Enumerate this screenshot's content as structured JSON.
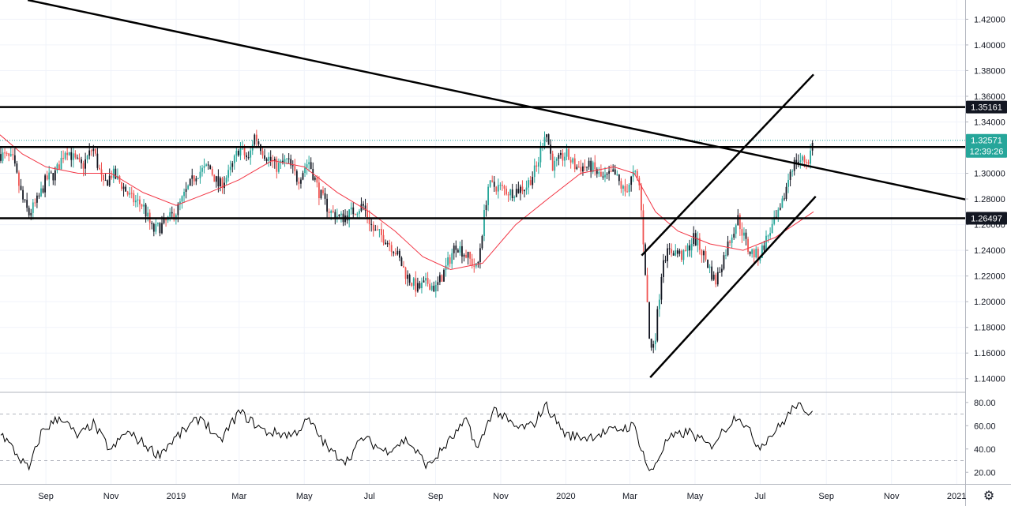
{
  "colors": {
    "up": "#26a69a",
    "down": "#ef5350",
    "candle_dark": "#131722",
    "ma": "#f23645",
    "grid": "#f0f3fa",
    "hline": "#000000",
    "badge_bg": "#131722",
    "last_price_bg": "#26a69a",
    "indicator": "#000000"
  },
  "chart_data": [
    {
      "type": "candlestick",
      "title": "",
      "xlabel": "",
      "ylabel": "",
      "ylim": [
        1.13,
        1.435
      ],
      "y_ticks": [
        "1.42000",
        "1.40000",
        "1.38000",
        "1.36000",
        "1.34000",
        "1.32000",
        "1.30000",
        "1.28000",
        "1.26000",
        "1.24000",
        "1.22000",
        "1.20000",
        "1.18000",
        "1.16000",
        "1.14000"
      ],
      "x_ticks": [
        "Sep",
        "Nov",
        "2019",
        "Mar",
        "May",
        "Jul",
        "Sep",
        "Nov",
        "2020",
        "Mar",
        "May",
        "Jul",
        "Sep",
        "Nov",
        "2021"
      ],
      "close_path": [
        {
          "d": "2018-07-20",
          "v": 1.315
        },
        {
          "d": "2018-08-01",
          "v": 1.31
        },
        {
          "d": "2018-08-10",
          "v": 1.28
        },
        {
          "d": "2018-08-16",
          "v": 1.268
        },
        {
          "d": "2018-08-25",
          "v": 1.28
        },
        {
          "d": "2018-09-01",
          "v": 1.295
        },
        {
          "d": "2018-09-10",
          "v": 1.3
        },
        {
          "d": "2018-09-20",
          "v": 1.32
        },
        {
          "d": "2018-09-28",
          "v": 1.31
        },
        {
          "d": "2018-10-05",
          "v": 1.305
        },
        {
          "d": "2018-10-15",
          "v": 1.32
        },
        {
          "d": "2018-10-25",
          "v": 1.29
        },
        {
          "d": "2018-11-02",
          "v": 1.3
        },
        {
          "d": "2018-11-12",
          "v": 1.29
        },
        {
          "d": "2018-11-20",
          "v": 1.28
        },
        {
          "d": "2018-12-01",
          "v": 1.275
        },
        {
          "d": "2018-12-10",
          "v": 1.255
        },
        {
          "d": "2018-12-20",
          "v": 1.26
        },
        {
          "d": "2019-01-01",
          "v": 1.27
        },
        {
          "d": "2019-01-10",
          "v": 1.285
        },
        {
          "d": "2019-01-20",
          "v": 1.3
        },
        {
          "d": "2019-02-01",
          "v": 1.305
        },
        {
          "d": "2019-02-10",
          "v": 1.29
        },
        {
          "d": "2019-02-20",
          "v": 1.3
        },
        {
          "d": "2019-03-01",
          "v": 1.32
        },
        {
          "d": "2019-03-10",
          "v": 1.31
        },
        {
          "d": "2019-03-15",
          "v": 1.33
        },
        {
          "d": "2019-03-25",
          "v": 1.315
        },
        {
          "d": "2019-04-05",
          "v": 1.305
        },
        {
          "d": "2019-04-15",
          "v": 1.31
        },
        {
          "d": "2019-04-25",
          "v": 1.295
        },
        {
          "d": "2019-05-05",
          "v": 1.31
        },
        {
          "d": "2019-05-15",
          "v": 1.285
        },
        {
          "d": "2019-05-25",
          "v": 1.27
        },
        {
          "d": "2019-06-05",
          "v": 1.265
        },
        {
          "d": "2019-06-15",
          "v": 1.27
        },
        {
          "d": "2019-06-25",
          "v": 1.275
        },
        {
          "d": "2019-07-05",
          "v": 1.255
        },
        {
          "d": "2019-07-15",
          "v": 1.25
        },
        {
          "d": "2019-07-25",
          "v": 1.24
        },
        {
          "d": "2019-08-05",
          "v": 1.22
        },
        {
          "d": "2019-08-15",
          "v": 1.21
        },
        {
          "d": "2019-08-25",
          "v": 1.215
        },
        {
          "d": "2019-09-01",
          "v": 1.21
        },
        {
          "d": "2019-09-10",
          "v": 1.225
        },
        {
          "d": "2019-09-20",
          "v": 1.245
        },
        {
          "d": "2019-10-01",
          "v": 1.235
        },
        {
          "d": "2019-10-10",
          "v": 1.225
        },
        {
          "d": "2019-10-20",
          "v": 1.29
        },
        {
          "d": "2019-10-28",
          "v": 1.29
        },
        {
          "d": "2019-11-10",
          "v": 1.285
        },
        {
          "d": "2019-11-25",
          "v": 1.29
        },
        {
          "d": "2019-12-05",
          "v": 1.305
        },
        {
          "d": "2019-12-13",
          "v": 1.335
        },
        {
          "d": "2019-12-20",
          "v": 1.305
        },
        {
          "d": "2020-01-01",
          "v": 1.315
        },
        {
          "d": "2020-01-10",
          "v": 1.305
        },
        {
          "d": "2020-01-25",
          "v": 1.305
        },
        {
          "d": "2020-02-05",
          "v": 1.295
        },
        {
          "d": "2020-02-15",
          "v": 1.3
        },
        {
          "d": "2020-02-25",
          "v": 1.285
        },
        {
          "d": "2020-03-05",
          "v": 1.3
        },
        {
          "d": "2020-03-10",
          "v": 1.29
        },
        {
          "d": "2020-03-15",
          "v": 1.23
        },
        {
          "d": "2020-03-20",
          "v": 1.16
        },
        {
          "d": "2020-03-25",
          "v": 1.175
        },
        {
          "d": "2020-04-01",
          "v": 1.235
        },
        {
          "d": "2020-04-10",
          "v": 1.24
        },
        {
          "d": "2020-04-20",
          "v": 1.235
        },
        {
          "d": "2020-04-30",
          "v": 1.25
        },
        {
          "d": "2020-05-10",
          "v": 1.235
        },
        {
          "d": "2020-05-20",
          "v": 1.215
        },
        {
          "d": "2020-06-01",
          "v": 1.245
        },
        {
          "d": "2020-06-10",
          "v": 1.265
        },
        {
          "d": "2020-06-20",
          "v": 1.24
        },
        {
          "d": "2020-06-30",
          "v": 1.235
        },
        {
          "d": "2020-07-10",
          "v": 1.255
        },
        {
          "d": "2020-07-20",
          "v": 1.27
        },
        {
          "d": "2020-07-30",
          "v": 1.305
        },
        {
          "d": "2020-08-05",
          "v": 1.31
        },
        {
          "d": "2020-08-15",
          "v": 1.31
        },
        {
          "d": "2020-08-20",
          "v": 1.3257
        }
      ],
      "ma_path": [
        {
          "d": "2018-07-20",
          "v": 1.33
        },
        {
          "d": "2018-08-10",
          "v": 1.315
        },
        {
          "d": "2018-09-01",
          "v": 1.305
        },
        {
          "d": "2018-10-01",
          "v": 1.3
        },
        {
          "d": "2018-11-01",
          "v": 1.3
        },
        {
          "d": "2018-12-01",
          "v": 1.285
        },
        {
          "d": "2019-01-01",
          "v": 1.275
        },
        {
          "d": "2019-02-01",
          "v": 1.285
        },
        {
          "d": "2019-03-01",
          "v": 1.295
        },
        {
          "d": "2019-04-01",
          "v": 1.31
        },
        {
          "d": "2019-05-01",
          "v": 1.305
        },
        {
          "d": "2019-06-01",
          "v": 1.285
        },
        {
          "d": "2019-07-01",
          "v": 1.27
        },
        {
          "d": "2019-07-25",
          "v": 1.255
        },
        {
          "d": "2019-08-20",
          "v": 1.235
        },
        {
          "d": "2019-09-15",
          "v": 1.225
        },
        {
          "d": "2019-10-15",
          "v": 1.23
        },
        {
          "d": "2019-11-15",
          "v": 1.26
        },
        {
          "d": "2019-12-15",
          "v": 1.28
        },
        {
          "d": "2020-01-15",
          "v": 1.3
        },
        {
          "d": "2020-02-15",
          "v": 1.305
        },
        {
          "d": "2020-03-05",
          "v": 1.3
        },
        {
          "d": "2020-03-25",
          "v": 1.27
        },
        {
          "d": "2020-04-15",
          "v": 1.255
        },
        {
          "d": "2020-05-15",
          "v": 1.245
        },
        {
          "d": "2020-06-15",
          "v": 1.24
        },
        {
          "d": "2020-07-15",
          "v": 1.25
        },
        {
          "d": "2020-08-20",
          "v": 1.27
        }
      ],
      "horizontal_levels": [
        {
          "value": 1.35161,
          "label": "1.35161"
        },
        {
          "value": 1.3205
        },
        {
          "value": 1.26497,
          "label": "1.26497"
        }
      ],
      "trend_lines": [
        {
          "from": {
            "d": "2018-08-15",
            "v": 1.435
          },
          "to": {
            "d": "2021-01-10",
            "v": 1.2795
          }
        },
        {
          "from": {
            "d": "2020-03-12",
            "v": 1.236
          },
          "to": {
            "d": "2020-08-20",
            "v": 1.377
          }
        },
        {
          "from": {
            "d": "2020-03-20",
            "v": 1.141
          },
          "to": {
            "d": "2020-08-22",
            "v": 1.282
          }
        }
      ],
      "last_price": {
        "value": 1.32571,
        "label": "1.32571",
        "countdown": "12:39:26"
      }
    },
    {
      "type": "line",
      "title": "",
      "ylim": [
        10,
        88
      ],
      "y_ticks": [
        "80.00",
        "60.00",
        "40.00",
        "20.00"
      ],
      "bands": [
        70,
        30
      ],
      "path": [
        {
          "d": "2018-07-20",
          "v": 55
        },
        {
          "d": "2018-08-05",
          "v": 35
        },
        {
          "d": "2018-08-16",
          "v": 22
        },
        {
          "d": "2018-08-28",
          "v": 55
        },
        {
          "d": "2018-09-15",
          "v": 68
        },
        {
          "d": "2018-10-01",
          "v": 50
        },
        {
          "d": "2018-10-15",
          "v": 62
        },
        {
          "d": "2018-11-01",
          "v": 38
        },
        {
          "d": "2018-11-15",
          "v": 55
        },
        {
          "d": "2018-12-01",
          "v": 45
        },
        {
          "d": "2018-12-15",
          "v": 35
        },
        {
          "d": "2019-01-01",
          "v": 50
        },
        {
          "d": "2019-01-25",
          "v": 68
        },
        {
          "d": "2019-02-10",
          "v": 45
        },
        {
          "d": "2019-03-01",
          "v": 72
        },
        {
          "d": "2019-03-25",
          "v": 55
        },
        {
          "d": "2019-04-20",
          "v": 52
        },
        {
          "d": "2019-05-05",
          "v": 65
        },
        {
          "d": "2019-05-25",
          "v": 38
        },
        {
          "d": "2019-06-10",
          "v": 30
        },
        {
          "d": "2019-06-25",
          "v": 50
        },
        {
          "d": "2019-07-15",
          "v": 38
        },
        {
          "d": "2019-08-05",
          "v": 48
        },
        {
          "d": "2019-08-25",
          "v": 25
        },
        {
          "d": "2019-09-15",
          "v": 48
        },
        {
          "d": "2019-10-01",
          "v": 65
        },
        {
          "d": "2019-10-10",
          "v": 38
        },
        {
          "d": "2019-10-25",
          "v": 75
        },
        {
          "d": "2019-11-15",
          "v": 58
        },
        {
          "d": "2019-12-01",
          "v": 60
        },
        {
          "d": "2019-12-13",
          "v": 78
        },
        {
          "d": "2020-01-01",
          "v": 52
        },
        {
          "d": "2020-01-20",
          "v": 50
        },
        {
          "d": "2020-02-10",
          "v": 55
        },
        {
          "d": "2020-03-05",
          "v": 60
        },
        {
          "d": "2020-03-20",
          "v": 18
        },
        {
          "d": "2020-04-05",
          "v": 48
        },
        {
          "d": "2020-04-25",
          "v": 55
        },
        {
          "d": "2020-05-15",
          "v": 42
        },
        {
          "d": "2020-06-10",
          "v": 70
        },
        {
          "d": "2020-06-30",
          "v": 42
        },
        {
          "d": "2020-07-20",
          "v": 60
        },
        {
          "d": "2020-08-05",
          "v": 80
        },
        {
          "d": "2020-08-12",
          "v": 68
        },
        {
          "d": "2020-08-20",
          "v": 77
        }
      ]
    }
  ]
}
